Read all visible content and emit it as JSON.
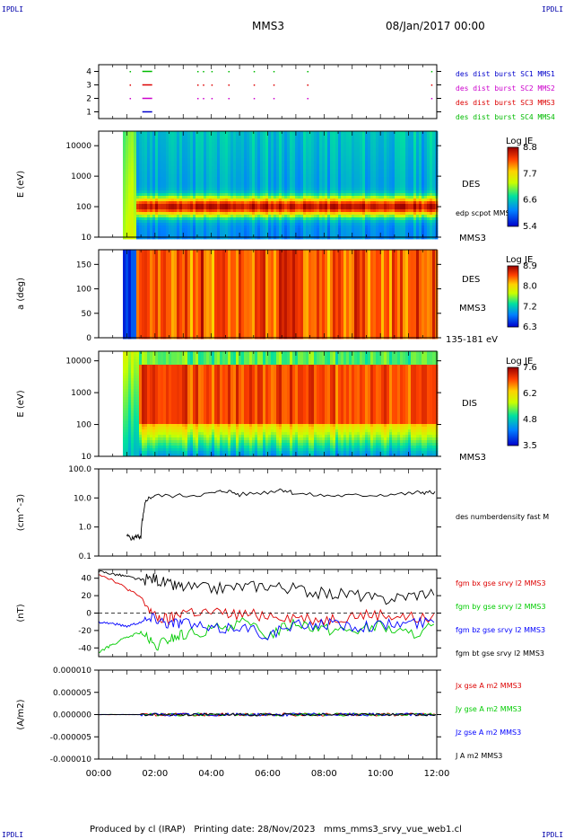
{
  "header": {
    "corner_label": "IPDLI",
    "spacecraft": "MMS3",
    "date": "08/Jan/2017 00:00"
  },
  "footer": {
    "text": "Produced by cl (IRAP)   Printing date: 28/Nov/2023   mms_mms3_srvy_vue_web1.cl"
  },
  "colors": {
    "red": "#dd0000",
    "green": "#00cc00",
    "blue": "#0000ff",
    "magenta": "#cc00cc",
    "black": "#000000"
  },
  "chart_data": [
    {
      "type": "scatter",
      "name": "burst-availability",
      "ylim": [
        0.5,
        4.5
      ],
      "yticks": [
        1,
        2,
        3,
        4
      ],
      "legend": [
        {
          "label": "des dist burst SC1 MMS1",
          "color": "#0000cc"
        },
        {
          "label": "des dist burst SC2 MMS2",
          "color": "#cc00cc"
        },
        {
          "label": "des dist burst SC3 MMS3",
          "color": "#dd0000"
        },
        {
          "label": "des dist burst SC4 MMS4",
          "color": "#00bb00"
        }
      ],
      "segments": [
        {
          "sc": 4,
          "start": 1.55,
          "end": 1.9
        },
        {
          "sc": 3,
          "start": 1.55,
          "end": 1.9
        },
        {
          "sc": 2,
          "start": 1.55,
          "end": 1.9
        },
        {
          "sc": 1,
          "start": 1.55,
          "end": 1.9
        }
      ],
      "dots_hours": [
        1.1,
        3.5,
        3.7,
        4.0,
        4.6,
        5.5,
        6.2,
        7.4,
        11.8
      ]
    },
    {
      "type": "heatmap",
      "name": "des-energy-spectrogram",
      "ylabel": "E (eV)",
      "yscale": "log",
      "ylim": [
        10,
        30000
      ],
      "yticks": [
        "10000",
        "1000",
        "100",
        "10"
      ],
      "side_labels": [
        "DES",
        "edp scpot MMS3",
        "MMS3"
      ],
      "colorbar": {
        "title": "Log JE",
        "ticks": [
          "8.8",
          "7.7",
          "6.6",
          "5.4"
        ],
        "min": 5.4,
        "max": 8.8
      }
    },
    {
      "type": "heatmap",
      "name": "des-pitch-angle",
      "ylabel": "a (deg)",
      "ylim": [
        0,
        180
      ],
      "yticks": [
        "150",
        "100",
        "50",
        "0"
      ],
      "side_labels": [
        "DES",
        "MMS3",
        "135-181 eV"
      ],
      "colorbar": {
        "title": "Log JE",
        "ticks": [
          "8.9",
          "8.0",
          "7.2",
          "6.3"
        ],
        "min": 6.3,
        "max": 8.9
      }
    },
    {
      "type": "heatmap",
      "name": "dis-energy-spectrogram",
      "ylabel": "E (eV)",
      "yscale": "log",
      "ylim": [
        10,
        20000
      ],
      "yticks": [
        "10000",
        "1000",
        "100",
        "10"
      ],
      "side_labels": [
        "DIS",
        "MMS3"
      ],
      "colorbar": {
        "title": "Log JE",
        "ticks": [
          "7.6",
          "6.2",
          "4.8",
          "3.5"
        ],
        "min": 3.5,
        "max": 7.6
      }
    },
    {
      "type": "line",
      "name": "number-density",
      "ylabel": "(cm^-3)",
      "yscale": "log",
      "ylim": [
        0.1,
        100
      ],
      "yticks": [
        "100.0",
        "10.0",
        "1.0",
        "0.1"
      ],
      "series": [
        {
          "name": "des numberdensity fast M",
          "color": "#000000",
          "x": [
            1.0,
            1.2,
            1.4,
            1.5,
            1.6,
            1.7,
            2.0,
            3.0,
            4.0,
            4.5,
            5.0,
            6.0,
            6.5,
            7.0,
            8.0,
            9.0,
            10.0,
            11.0,
            11.5,
            12.0
          ],
          "y": [
            0.5,
            0.4,
            0.5,
            0.4,
            3.0,
            9.0,
            12.0,
            12.0,
            14.0,
            18.0,
            13.0,
            16.0,
            20.0,
            14.0,
            12.0,
            12.0,
            13.0,
            14.0,
            16.0,
            15.0
          ]
        }
      ]
    },
    {
      "type": "line",
      "name": "magnetic-field",
      "ylabel": "(nT)",
      "ylim": [
        -50,
        50
      ],
      "yticks": [
        "40",
        "20",
        "0",
        "-20",
        "-40"
      ],
      "series": [
        {
          "name": "fgm bx gse srvy l2 MMS3",
          "color": "#dd0000",
          "x": [
            0.0,
            0.5,
            1.0,
            1.5,
            2.0,
            2.5,
            3.0,
            4.0,
            5.0,
            6.0,
            7.0,
            8.0,
            9.0,
            10.0,
            11.0,
            12.0
          ],
          "y": [
            45,
            38,
            28,
            18,
            -5,
            -8,
            2,
            0,
            -2,
            -2,
            -5,
            -8,
            -3,
            -2,
            -5,
            -8
          ]
        },
        {
          "name": "fgm by gse srvy l2 MMS3",
          "color": "#00cc00",
          "x": [
            0.0,
            0.5,
            1.0,
            1.5,
            2.0,
            2.5,
            3.0,
            4.0,
            5.0,
            6.0,
            7.0,
            8.0,
            9.0,
            10.0,
            11.0,
            12.0
          ],
          "y": [
            -45,
            -36,
            -28,
            -22,
            -40,
            -30,
            -25,
            -20,
            -10,
            -25,
            -10,
            -18,
            -20,
            -15,
            -25,
            -15
          ]
        },
        {
          "name": "fgm bz gse srvy l2 MMS3",
          "color": "#0000ff",
          "x": [
            0.0,
            0.5,
            1.0,
            1.5,
            2.0,
            2.5,
            3.0,
            4.0,
            5.0,
            6.0,
            7.0,
            8.0,
            9.0,
            10.0,
            11.0,
            12.0
          ],
          "y": [
            -10,
            -12,
            -15,
            -10,
            -5,
            -12,
            -10,
            -20,
            -15,
            -25,
            -15,
            -12,
            -15,
            -14,
            -12,
            -10
          ]
        },
        {
          "name": "fgm bt gse srvy l2 MMS3",
          "color": "#000000",
          "x": [
            0.0,
            0.5,
            1.0,
            1.5,
            2.0,
            2.5,
            3.0,
            4.0,
            5.0,
            6.0,
            7.0,
            8.0,
            9.0,
            10.0,
            11.0,
            12.0
          ],
          "y": [
            48,
            45,
            42,
            38,
            40,
            32,
            30,
            28,
            30,
            32,
            28,
            22,
            22,
            15,
            20,
            25
          ]
        }
      ]
    },
    {
      "type": "line",
      "name": "current-density",
      "ylabel": "(A/m2)",
      "ylim": [
        -1e-05,
        1e-05
      ],
      "yticks": [
        "0.000010",
        "0.000005",
        "0.000000",
        "-0.000005",
        "-0.000010"
      ],
      "xlabel_ticks": [
        "00:00",
        "02:00",
        "04:00",
        "06:00",
        "08:00",
        "10:00",
        "12:00"
      ],
      "series": [
        {
          "name": "Jx gse A m2 MMS3",
          "color": "#dd0000"
        },
        {
          "name": "Jy gse A m2 MMS3",
          "color": "#00cc00"
        },
        {
          "name": "Jz gse A m2 MMS3",
          "color": "#0000ff"
        },
        {
          "name": "J A m2 MMS3",
          "color": "#000000"
        }
      ]
    }
  ]
}
